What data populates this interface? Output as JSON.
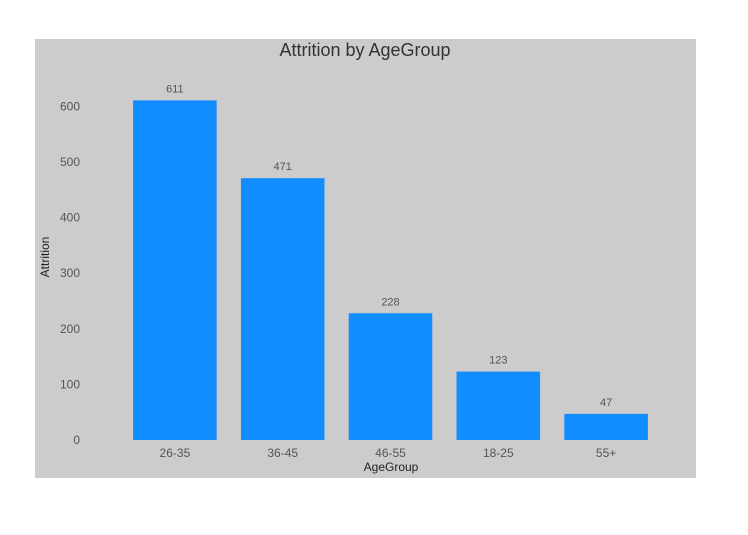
{
  "chart_data": {
    "type": "bar",
    "title": "Attrition by AgeGroup",
    "xlabel": "AgeGroup",
    "ylabel": "Attrition",
    "categories": [
      "26-35",
      "36-45",
      "46-55",
      "18-25",
      "55+"
    ],
    "values": [
      611,
      471,
      228,
      123,
      47
    ],
    "data_labels": [
      "611",
      "471",
      "228",
      "123",
      "47"
    ],
    "ylim": [
      0,
      680
    ],
    "yticks": [
      0,
      100,
      200,
      300,
      400,
      500,
      600
    ],
    "ytick_labels": [
      "0",
      "100",
      "200",
      "300",
      "400",
      "500",
      "600"
    ],
    "grid": false,
    "legend": "none",
    "colors": {
      "bar": "#118dff",
      "panel_background": "#cccccc",
      "text": "#555555",
      "title": "#333333"
    }
  }
}
